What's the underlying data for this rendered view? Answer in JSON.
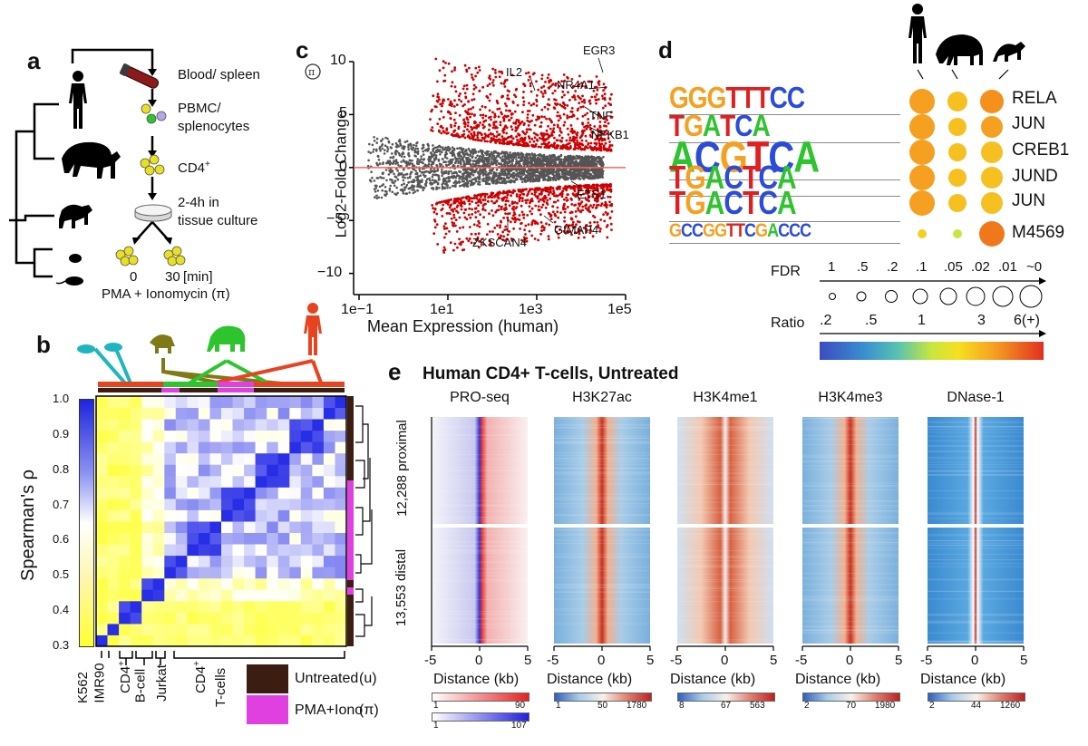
{
  "panel_a": {
    "label": "a",
    "steps": [
      "Blood/ spleen",
      "PBMC/",
      "splenocytes",
      "CD4",
      "+",
      "2-4h in",
      "tissue culture"
    ],
    "timepoints": [
      "0",
      "30",
      "[min]"
    ],
    "treatment": "PMA + Ionomycin (π)"
  },
  "panel_b": {
    "label": "b",
    "ylabel": "Spearman's ρ",
    "colorbar_ticks": [
      "1.0",
      "0.9",
      "0.8",
      "0.7",
      "0.6",
      "0.5",
      "0.4",
      "0.3"
    ],
    "row_labels": [
      "K562",
      "IMR90",
      "CD4",
      "+",
      "B-cell",
      "Jurkat",
      "CD4",
      "+",
      "T-cells"
    ],
    "legend": [
      {
        "label": "Untreated",
        "symbol": "(u)",
        "color": "#3b1d12"
      },
      {
        "label": "PMA+Iono",
        "symbol": "(π)",
        "color": "#e040e0"
      }
    ],
    "colors": {
      "human": "#e8431f",
      "chimp": "#2ec42e",
      "rhesus": "#7f7a17",
      "rodent": "#1eb5bd"
    }
  },
  "panel_c": {
    "label": "c",
    "ylabel": "Log2-Fold Change",
    "ylabel_icon": "π-symbol",
    "xlabel": "Mean Expression (human)",
    "yticks": [
      "10",
      "5",
      "0",
      "−5",
      "−10"
    ],
    "xticks": [
      "1e−1",
      "1e1",
      "1e3",
      "1e5"
    ],
    "genes": [
      "EGR3",
      "IL2",
      "NR4A1",
      "TNF",
      "NFKB1",
      "ETS1",
      "GIMAP4",
      "ZKSCAN4"
    ]
  },
  "panel_d": {
    "label": "d",
    "motifs": [
      {
        "name": "RELA",
        "logo": "GGG TTTCC"
      },
      {
        "name": "JUN",
        "logo": "TGA TCA"
      },
      {
        "name": "CREB1",
        "logo": "ACGTCA"
      },
      {
        "name": "JUND",
        "logo": "TGACTCA"
      },
      {
        "name": "JUN",
        "logo": "TGACTCA"
      },
      {
        "name": "M4569",
        "logo": "GCCGGTTCGACCC"
      }
    ],
    "fdr_label": "FDR",
    "fdr_ticks": [
      "1",
      ".5",
      ".2",
      ".1",
      ".05",
      ".02",
      ".01",
      "~0"
    ],
    "ratio_label": "Ratio",
    "ratio_ticks": [
      ".2",
      ".5",
      "1",
      "3",
      "6(+)"
    ]
  },
  "panel_e": {
    "label": "e",
    "title": "Human CD4+ T-cells, Untreated",
    "row_labels": [
      "12,288 proximal",
      "13,553 distal"
    ],
    "tracks": [
      {
        "name": "PRO-seq",
        "xlabel": "Distance (kb)",
        "scale": [
          "1",
          "90"
        ],
        "scale2": [
          "1",
          "107"
        ]
      },
      {
        "name": "H3K27ac",
        "xlabel": "Distance (kb)",
        "scale": [
          "1",
          "50",
          "1780"
        ]
      },
      {
        "name": "H3K4me1",
        "xlabel": "Distance (kb)",
        "scale": [
          "8",
          "67",
          "563"
        ]
      },
      {
        "name": "H3K4me3",
        "xlabel": "Distance (kb)",
        "scale": [
          "2",
          "70",
          "1980"
        ]
      },
      {
        "name": "DNase-1",
        "xlabel": "Distance (kb)",
        "scale": [
          "2",
          "44",
          "1260"
        ]
      }
    ],
    "xticks": [
      "-5",
      "0",
      "5"
    ]
  }
}
